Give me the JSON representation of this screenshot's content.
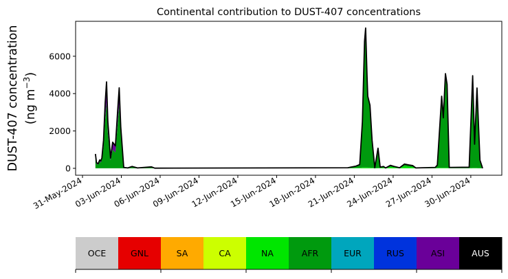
{
  "chart_data": {
    "type": "area",
    "stacked": true,
    "title": "Continental contribution to DUST-407 concentrations",
    "ylabel_line1": "DUST-407 concentration",
    "ylabel_line2": "(ng m",
    "ylabel_sup": "−3",
    "ylabel_close": ")",
    "xlim": [
      "2024-05-30T11:15",
      "2024-07-02T09:30"
    ],
    "ylim": [
      -370,
      7870
    ],
    "grid": false,
    "legend": "colorbar-bottom",
    "x_ticks": [
      {
        "date": "2024-05-31",
        "label": "31-May-2024"
      },
      {
        "date": "2024-06-03",
        "label": "03-Jun-2024"
      },
      {
        "date": "2024-06-06",
        "label": "06-Jun-2024"
      },
      {
        "date": "2024-06-09",
        "label": "09-Jun-2024"
      },
      {
        "date": "2024-06-12",
        "label": "12-Jun-2024"
      },
      {
        "date": "2024-06-15",
        "label": "15-Jun-2024"
      },
      {
        "date": "2024-06-18",
        "label": "18-Jun-2024"
      },
      {
        "date": "2024-06-21",
        "label": "21-Jun-2024"
      },
      {
        "date": "2024-06-24",
        "label": "24-Jun-2024"
      },
      {
        "date": "2024-06-27",
        "label": "27-Jun-2024"
      },
      {
        "date": "2024-06-30",
        "label": "30-Jun-2024"
      }
    ],
    "y_ticks": [
      {
        "value": 0,
        "label": "0"
      },
      {
        "value": 2000,
        "label": "2000"
      },
      {
        "value": 4000,
        "label": "4000"
      },
      {
        "value": 6000,
        "label": "6000"
      }
    ],
    "series_order": [
      "NA",
      "AFR",
      "ASI"
    ],
    "points": {
      "columns": [
        "time",
        "total",
        "ASI",
        "NA"
      ],
      "rows": [
        [
          "2024-06-01T00:00",
          770,
          150,
          0
        ],
        [
          "2024-06-01T02:00",
          300,
          60,
          0
        ],
        [
          "2024-06-01T05:00",
          250,
          50,
          0
        ],
        [
          "2024-06-01T08:00",
          450,
          80,
          0
        ],
        [
          "2024-06-01T10:00",
          400,
          80,
          0
        ],
        [
          "2024-06-01T12:00",
          550,
          100,
          0
        ],
        [
          "2024-06-01T15:00",
          1500,
          400,
          0
        ],
        [
          "2024-06-01T18:00",
          3500,
          900,
          0
        ],
        [
          "2024-06-01T20:40",
          4630,
          1100,
          0
        ],
        [
          "2024-06-01T23:00",
          2500,
          600,
          0
        ],
        [
          "2024-06-02T04:00",
          550,
          120,
          0
        ],
        [
          "2024-06-02T08:00",
          1400,
          400,
          0
        ],
        [
          "2024-06-02T13:00",
          1200,
          350,
          0
        ],
        [
          "2024-06-02T17:00",
          3000,
          700,
          0
        ],
        [
          "2024-06-02T20:00",
          4310,
          900,
          0
        ],
        [
          "2024-06-02T23:00",
          2200,
          300,
          0
        ],
        [
          "2024-06-03T04:30",
          50,
          10,
          0
        ],
        [
          "2024-06-03T12:00",
          20,
          5,
          0
        ],
        [
          "2024-06-03T20:00",
          100,
          30,
          0
        ],
        [
          "2024-06-04T06:00",
          20,
          5,
          0
        ],
        [
          "2024-06-05T08:00",
          80,
          10,
          0
        ],
        [
          "2024-06-05T14:00",
          10,
          0,
          0
        ],
        [
          "2024-06-20T12:00",
          30,
          0,
          5
        ],
        [
          "2024-06-21T03:00",
          120,
          0,
          20
        ],
        [
          "2024-06-21T10:00",
          200,
          0,
          20
        ],
        [
          "2024-06-21T15:00",
          2500,
          0,
          50
        ],
        [
          "2024-06-21T19:00",
          6800,
          0,
          50
        ],
        [
          "2024-06-21T21:00",
          7510,
          0,
          50
        ],
        [
          "2024-06-21T23:30",
          5000,
          0,
          50
        ],
        [
          "2024-06-22T01:00",
          3860,
          0,
          40
        ],
        [
          "2024-06-22T05:00",
          3380,
          0,
          40
        ],
        [
          "2024-06-22T09:00",
          1500,
          0,
          30
        ],
        [
          "2024-06-22T14:00",
          30,
          0,
          10
        ],
        [
          "2024-06-22T20:00",
          1080,
          0,
          20
        ],
        [
          "2024-06-23T00:00",
          60,
          0,
          20
        ],
        [
          "2024-06-23T06:00",
          100,
          0,
          40
        ],
        [
          "2024-06-23T10:00",
          20,
          0,
          10
        ],
        [
          "2024-06-23T19:00",
          160,
          0,
          80
        ],
        [
          "2024-06-24T02:00",
          100,
          0,
          50
        ],
        [
          "2024-06-24T12:00",
          30,
          0,
          15
        ],
        [
          "2024-06-24T21:00",
          230,
          0,
          120
        ],
        [
          "2024-06-25T05:00",
          180,
          0,
          80
        ],
        [
          "2024-06-25T12:00",
          150,
          0,
          60
        ],
        [
          "2024-06-25T18:00",
          20,
          0,
          10
        ],
        [
          "2024-06-27T06:00",
          50,
          0,
          10
        ],
        [
          "2024-06-27T10:00",
          170,
          0,
          20
        ],
        [
          "2024-06-27T18:00",
          3860,
          0,
          30
        ],
        [
          "2024-06-27T21:00",
          2700,
          0,
          30
        ],
        [
          "2024-06-28T01:00",
          5070,
          0,
          30
        ],
        [
          "2024-06-28T04:00",
          4490,
          0,
          30
        ],
        [
          "2024-06-28T08:00",
          50,
          0,
          10
        ],
        [
          "2024-06-29T21:00",
          60,
          0,
          10
        ],
        [
          "2024-06-30T03:30",
          4960,
          0,
          20
        ],
        [
          "2024-06-30T07:00",
          1290,
          0,
          20
        ],
        [
          "2024-06-30T11:30",
          4300,
          0,
          20
        ],
        [
          "2024-06-30T17:00",
          440,
          0,
          10
        ],
        [
          "2024-06-30T22:00",
          0,
          0,
          0
        ]
      ]
    },
    "total_line_color": "#000000",
    "colorbar": [
      {
        "label": "OCE",
        "color": "#cccccc",
        "text_color": "#000000"
      },
      {
        "label": "GNL",
        "color": "#e60000",
        "text_color": "#000000"
      },
      {
        "label": "SA",
        "color": "#ffaa00",
        "text_color": "#000000"
      },
      {
        "label": "CA",
        "color": "#ccff00",
        "text_color": "#000000"
      },
      {
        "label": "NA",
        "color": "#00e600",
        "text_color": "#000000"
      },
      {
        "label": "AFR",
        "color": "#009a0e",
        "text_color": "#000000"
      },
      {
        "label": "EUR",
        "color": "#00a6bd",
        "text_color": "#000000"
      },
      {
        "label": "RUS",
        "color": "#0033dd",
        "text_color": "#000000"
      },
      {
        "label": "ASI",
        "color": "#6a0099",
        "text_color": "#000000"
      },
      {
        "label": "AUS",
        "color": "#000000",
        "text_color": "#ffffff"
      }
    ]
  }
}
